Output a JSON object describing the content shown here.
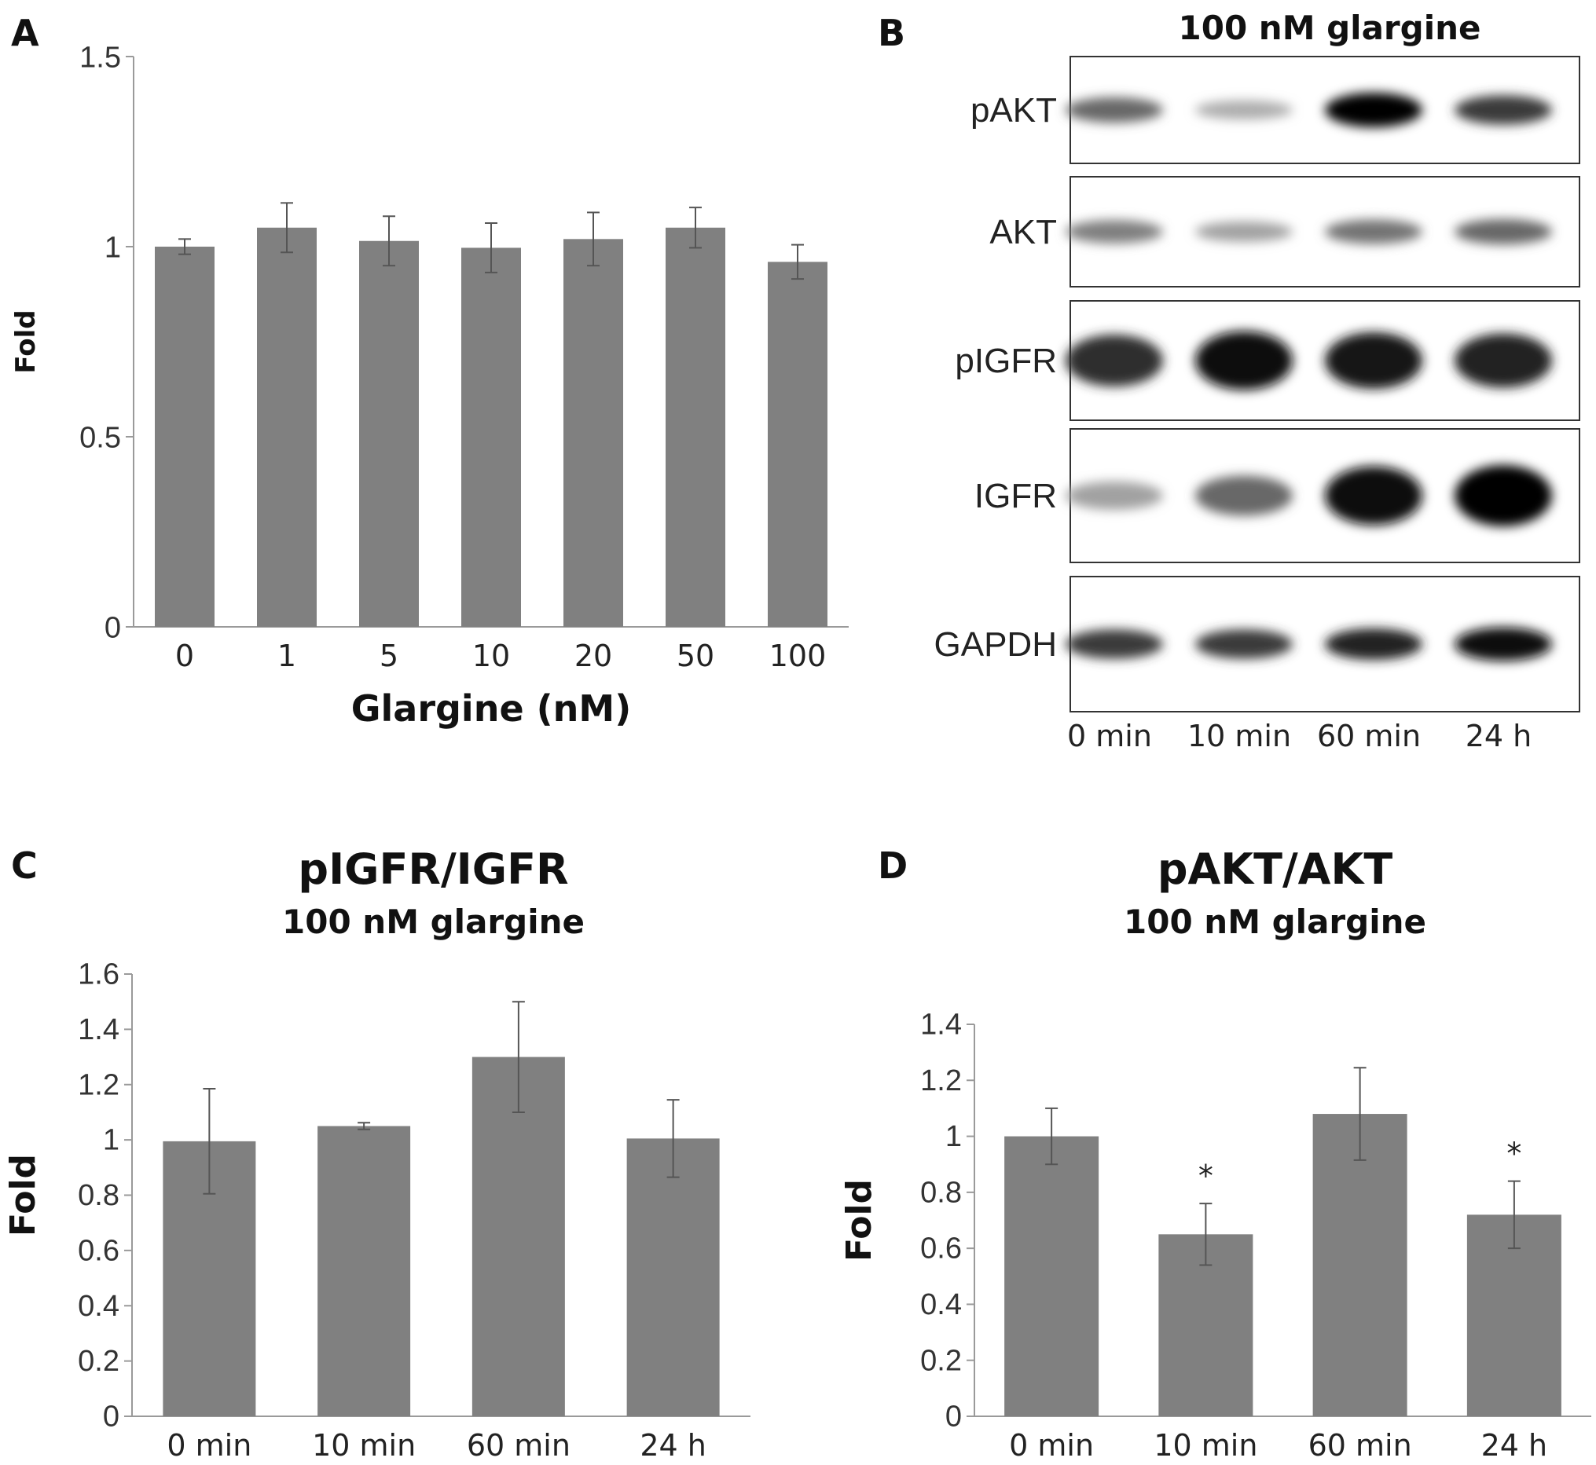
{
  "panels": {
    "A": "A",
    "B": "B",
    "C": "C",
    "D": "D"
  },
  "chart_data": [
    {
      "id": "A",
      "type": "bar",
      "title": "",
      "xlabel": "Glargine (nM)",
      "ylabel": "Fold",
      "categories": [
        "0",
        "1",
        "5",
        "10",
        "20",
        "50",
        "100"
      ],
      "values": [
        1.0,
        1.05,
        1.015,
        0.997,
        1.02,
        1.05,
        0.96
      ],
      "errors": [
        0.02,
        0.065,
        0.065,
        0.065,
        0.07,
        0.053,
        0.045
      ],
      "yticks": [
        "0",
        "0.5",
        "1",
        "1.5"
      ],
      "ylim": [
        0,
        1.5
      ],
      "annotations": []
    },
    {
      "id": "C",
      "type": "bar",
      "title": "pIGFR/IGFR",
      "subtitle": "100 nM glargine",
      "xlabel": "",
      "ylabel": "Fold",
      "categories": [
        "0 min",
        "10 min",
        "60 min",
        "24 h"
      ],
      "values": [
        0.995,
        1.05,
        1.3,
        1.005
      ],
      "errors": [
        0.19,
        0.012,
        0.2,
        0.14
      ],
      "yticks": [
        "0",
        "0.2",
        "0.4",
        "0.6",
        "0.8",
        "1",
        "1.2",
        "1.4",
        "1.6"
      ],
      "ylim": [
        0,
        1.6
      ],
      "annotations": []
    },
    {
      "id": "D",
      "type": "bar",
      "title": "pAKT/AKT",
      "subtitle": "100 nM glargine",
      "xlabel": "",
      "ylabel": "Fold",
      "categories": [
        "0 min",
        "10 min",
        "60 min",
        "24 h"
      ],
      "values": [
        1.0,
        0.65,
        1.08,
        0.72
      ],
      "errors": [
        0.1,
        0.11,
        0.165,
        0.12
      ],
      "yticks": [
        "0",
        "0.2",
        "0.4",
        "0.6",
        "0.8",
        "1",
        "1.2",
        "1.4"
      ],
      "ylim": [
        0,
        1.4
      ],
      "annotations": [
        "",
        "*",
        "",
        "*"
      ]
    }
  ],
  "western_blot": {
    "title": "100 nM glargine",
    "lanes": [
      "0 min",
      "10 min",
      "60 min",
      "24 h"
    ],
    "rows": [
      {
        "label": "pAKT",
        "intensity": [
          0.55,
          0.25,
          1.0,
          0.75
        ]
      },
      {
        "label": "AKT",
        "intensity": [
          0.45,
          0.3,
          0.5,
          0.55
        ]
      },
      {
        "label": "pIGFR",
        "intensity": [
          0.8,
          0.95,
          0.9,
          0.85
        ]
      },
      {
        "label": "IGFR",
        "intensity": [
          0.3,
          0.55,
          0.95,
          1.0
        ]
      },
      {
        "label": "GAPDH",
        "intensity": [
          0.75,
          0.75,
          0.85,
          0.95
        ]
      }
    ]
  }
}
